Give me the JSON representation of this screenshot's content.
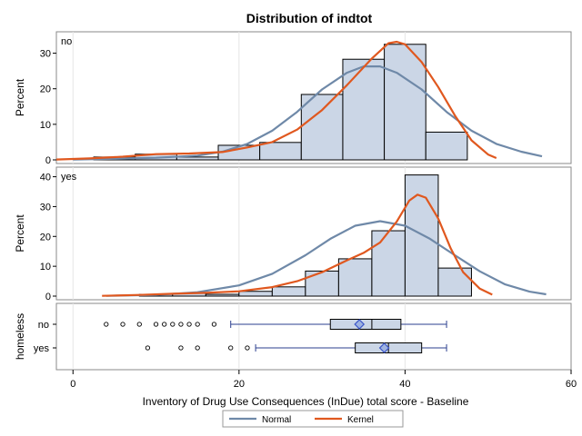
{
  "chart_data": {
    "type": "bar",
    "title": "Distribution of indtot",
    "xlabel": "Inventory of Drug Use Consequences (InDue) total score - Baseline",
    "xlim": [
      -2,
      60
    ],
    "x_ticks": [
      0,
      20,
      40,
      60
    ],
    "panels": [
      {
        "label": "no",
        "ylabel": "Percent",
        "ylim": [
          0,
          35
        ],
        "y_ticks": [
          0,
          10,
          20,
          30
        ],
        "bins": [
          {
            "x0": 2.5,
            "x1": 7.5,
            "value": 0.8
          },
          {
            "x0": 7.5,
            "x1": 12.5,
            "value": 1.6
          },
          {
            "x0": 12.5,
            "x1": 17.5,
            "value": 0.8
          },
          {
            "x0": 17.5,
            "x1": 22.5,
            "value": 4.1
          },
          {
            "x0": 22.5,
            "x1": 27.5,
            "value": 4.9
          },
          {
            "x0": 27.5,
            "x1": 32.5,
            "value": 18.4
          },
          {
            "x0": 32.5,
            "x1": 37.5,
            "value": 28.3
          },
          {
            "x0": 37.5,
            "x1": 42.5,
            "value": 32.5
          },
          {
            "x0": 42.5,
            "x1": 47.5,
            "value": 7.8
          }
        ],
        "normal_curve": [
          [
            0,
            0.1
          ],
          [
            5,
            0.3
          ],
          [
            10,
            0.6
          ],
          [
            15,
            1.2
          ],
          [
            18,
            2.3
          ],
          [
            21,
            4.5
          ],
          [
            24,
            8.2
          ],
          [
            27,
            13.5
          ],
          [
            30,
            19.8
          ],
          [
            33,
            24.5
          ],
          [
            35,
            26.3
          ],
          [
            37,
            26.3
          ],
          [
            39,
            24.5
          ],
          [
            42,
            19.8
          ],
          [
            45,
            13.5
          ],
          [
            48,
            8.2
          ],
          [
            51,
            4.5
          ],
          [
            54,
            2.3
          ],
          [
            56.5,
            1.0
          ]
        ],
        "kernel_curve": [
          [
            -2,
            0.1
          ],
          [
            2,
            0.4
          ],
          [
            6,
            0.9
          ],
          [
            10,
            1.6
          ],
          [
            14,
            1.8
          ],
          [
            18,
            2.2
          ],
          [
            21,
            3.5
          ],
          [
            24,
            5.0
          ],
          [
            27,
            8.5
          ],
          [
            30,
            14.0
          ],
          [
            33,
            21.0
          ],
          [
            36,
            28.5
          ],
          [
            38,
            32.8
          ],
          [
            39,
            33.2
          ],
          [
            40,
            32.5
          ],
          [
            42,
            27.5
          ],
          [
            44,
            20.5
          ],
          [
            46,
            12.5
          ],
          [
            48,
            5.5
          ],
          [
            50,
            1.5
          ],
          [
            51,
            0.5
          ]
        ]
      },
      {
        "label": "yes",
        "ylabel": "Percent",
        "ylim": [
          0,
          42
        ],
        "y_ticks": [
          0,
          10,
          20,
          30,
          40
        ],
        "bins": [
          {
            "x0": 8,
            "x1": 12,
            "value": 0.6
          },
          {
            "x0": 12,
            "x1": 16,
            "value": 0.9
          },
          {
            "x0": 16,
            "x1": 20,
            "value": 0.6
          },
          {
            "x0": 20,
            "x1": 24,
            "value": 1.6
          },
          {
            "x0": 24,
            "x1": 28,
            "value": 3.1
          },
          {
            "x0": 28,
            "x1": 32,
            "value": 8.4
          },
          {
            "x0": 32,
            "x1": 36,
            "value": 12.5
          },
          {
            "x0": 36,
            "x1": 40,
            "value": 21.9
          },
          {
            "x0": 40,
            "x1": 44,
            "value": 40.6
          },
          {
            "x0": 44,
            "x1": 48,
            "value": 9.4
          }
        ],
        "normal_curve": [
          [
            4,
            0.1
          ],
          [
            10,
            0.4
          ],
          [
            15,
            1.3
          ],
          [
            20,
            3.6
          ],
          [
            24,
            7.5
          ],
          [
            28,
            13.7
          ],
          [
            31,
            19.2
          ],
          [
            34,
            23.6
          ],
          [
            37,
            25.1
          ],
          [
            40,
            23.6
          ],
          [
            43,
            19.2
          ],
          [
            46,
            13.7
          ],
          [
            49,
            8.3
          ],
          [
            52,
            4.0
          ],
          [
            55,
            1.5
          ],
          [
            57,
            0.6
          ]
        ],
        "kernel_curve": [
          [
            3.5,
            0.1
          ],
          [
            8,
            0.4
          ],
          [
            12,
            0.8
          ],
          [
            16,
            1.1
          ],
          [
            20,
            1.6
          ],
          [
            24,
            3.0
          ],
          [
            27,
            5.0
          ],
          [
            30,
            8.0
          ],
          [
            33,
            12.0
          ],
          [
            35,
            14.5
          ],
          [
            37,
            18.0
          ],
          [
            39,
            25.0
          ],
          [
            40.5,
            32.0
          ],
          [
            41.5,
            34.0
          ],
          [
            42.5,
            33.0
          ],
          [
            44,
            26.0
          ],
          [
            45.5,
            16.0
          ],
          [
            47,
            8.0
          ],
          [
            49,
            2.5
          ],
          [
            50.5,
            0.5
          ]
        ]
      }
    ],
    "boxplot": {
      "ylabel": "homeless",
      "groups": [
        {
          "label": "no",
          "whisker_low": 19,
          "q1": 31,
          "median": 36,
          "q3": 39.5,
          "whisker_high": 45,
          "mean": 34.5,
          "outliers": [
            4,
            6,
            8,
            10,
            11,
            12,
            13,
            14,
            15,
            17
          ]
        },
        {
          "label": "yes",
          "whisker_low": 22,
          "q1": 34,
          "median": 38,
          "q3": 42,
          "whisker_high": 45,
          "mean": 37.5,
          "outliers": [
            9,
            13,
            15,
            19,
            21
          ]
        }
      ]
    },
    "legend": {
      "placement": "bottom",
      "entries": [
        {
          "name": "Normal",
          "color": "#6f89a8"
        },
        {
          "name": "Kernel",
          "color": "#e0581f"
        }
      ]
    },
    "colors": {
      "bar_fill": "#cbd6e6",
      "bar_stroke": "#000000",
      "normal": "#6f89a8",
      "kernel": "#e0581f",
      "box_fill": "#cbd6e6",
      "box_stroke": "#2b3f8f",
      "mean_marker": "#3a55c8"
    }
  }
}
